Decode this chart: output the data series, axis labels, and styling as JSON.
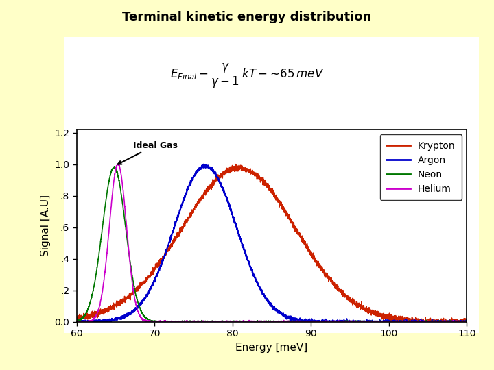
{
  "title": "Terminal kinetic energy distribution",
  "xlabel": "Energy [meV]",
  "ylabel": "Signal [A.U]",
  "xlim": [
    60,
    110
  ],
  "ylim": [
    0.0,
    1.22
  ],
  "xticks": [
    60,
    70,
    80,
    90,
    100,
    110
  ],
  "yticks": [
    0.0,
    0.2,
    0.4,
    0.6,
    0.8,
    1.0,
    1.2
  ],
  "ytick_labels": [
    "0.0",
    ".2",
    ".4",
    ".6",
    ".8",
    "1.0",
    "1.2"
  ],
  "background_color": "#FFFFC8",
  "plot_bg": "#FFFFFF",
  "curves": {
    "Krypton": {
      "color": "#CC2200",
      "peak": 81.0,
      "sigma": 7.2,
      "amp": 1.0
    },
    "Argon": {
      "color": "#0000CC",
      "peak": 76.5,
      "sigma": 4.0,
      "amp": 1.0
    },
    "Neon": {
      "color": "#007700",
      "peak": 64.8,
      "sigma": 1.5,
      "amp": 0.98
    },
    "Helium": {
      "color": "#CC00CC",
      "peak": 65.3,
      "sigma": 1.1,
      "amp": 1.0
    }
  },
  "title_fontsize": 13,
  "axis_label_fontsize": 11,
  "tick_fontsize": 10,
  "legend_fontsize": 10
}
